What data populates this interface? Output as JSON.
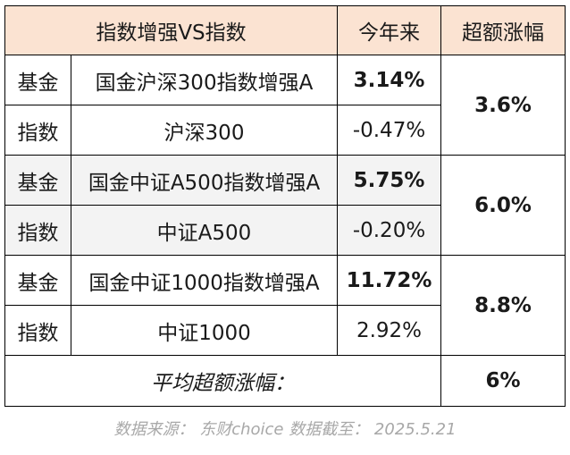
{
  "table": {
    "header": {
      "pair": "指数增强VS指数",
      "ytd": "今年来",
      "excess": "超额涨幅"
    },
    "groups": [
      {
        "fund_type": "基金",
        "fund_name": "国金沪深300指数增强A",
        "fund_ytd": "3.14%",
        "index_type": "指数",
        "index_name": "沪深300",
        "index_ytd": "-0.47%",
        "excess": "3.6%"
      },
      {
        "fund_type": "基金",
        "fund_name": "国金中证A500指数增强A",
        "fund_ytd": "5.75%",
        "index_type": "指数",
        "index_name": "中证A500",
        "index_ytd": "-0.20%",
        "excess": "6.0%"
      },
      {
        "fund_type": "基金",
        "fund_name": "国金中证1000指数增强A",
        "fund_ytd": "11.72%",
        "index_type": "指数",
        "index_name": "中证1000",
        "index_ytd": "2.92%",
        "excess": "8.8%"
      }
    ],
    "average": {
      "label": "平均超额涨幅：",
      "value": "6%"
    }
  },
  "source": "数据来源： 东财choice 数据截至： 2025.5.21",
  "colors": {
    "header_bg": "#fbe3d2",
    "shade_bg": "#f3f3f3",
    "accent_red": "#e60000",
    "source_gray": "#a8a8a8"
  }
}
